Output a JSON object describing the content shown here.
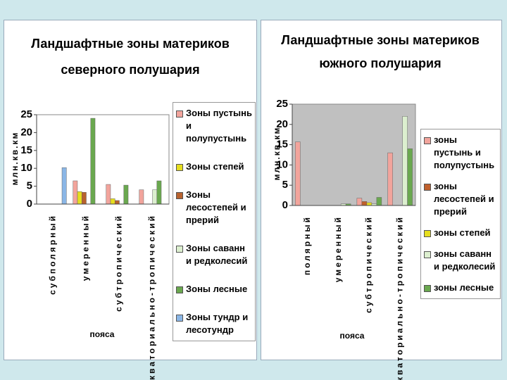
{
  "chart_data": [
    {
      "type": "bar",
      "title": [
        "Ландшафтные зоны материков",
        "северного полушария"
      ],
      "ylabel": "млн.кв.км",
      "xlabel": "пояса",
      "categories": [
        "субполярный",
        "умеренный",
        "субтропический",
        "экваториально-тропический"
      ],
      "series": [
        {
          "name": "Зоны пустынь и полупустынь",
          "color": "#f2a49c",
          "values": [
            0,
            6.5,
            5.5,
            4
          ]
        },
        {
          "name": "Зоны степей",
          "color": "#e6de1e",
          "values": [
            0,
            3.5,
            1.5,
            0
          ]
        },
        {
          "name": "Зоны лесостепей и прерий",
          "color": "#b8622e",
          "values": [
            0,
            3.3,
            1,
            0
          ]
        },
        {
          "name": "Зоны саванн и редколесий",
          "color": "#dcefcf",
          "values": [
            0,
            0,
            0,
            4
          ]
        },
        {
          "name": "Зоны лесные",
          "color": "#6aa84f",
          "values": [
            0,
            24,
            5.3,
            6.5
          ]
        },
        {
          "name": "Зоны тундр и лесотундр",
          "color": "#8ab6e6",
          "values": [
            10.2,
            0,
            0,
            0
          ]
        }
      ],
      "ylim": [
        0,
        25
      ],
      "yticks": [
        0,
        5,
        10,
        15,
        20,
        25
      ],
      "grid": false,
      "plot_background": "#ffffff"
    },
    {
      "type": "bar",
      "title": [
        "Ландшафтные зоны материков",
        "южного полушария"
      ],
      "ylabel": "млн.кв.км",
      "xlabel": "пояса",
      "categories": [
        "полярный",
        "умеренный",
        "субтропический",
        "экваториально-тропический"
      ],
      "series": [
        {
          "name": "зоны пустынь и полупустынь",
          "color": "#f2a49c",
          "values": [
            15.7,
            0,
            1.8,
            13
          ]
        },
        {
          "name": "зоны лесостепей и прерий",
          "color": "#c0602c",
          "values": [
            0,
            0,
            1,
            0
          ]
        },
        {
          "name": "зоны степей",
          "color": "#e6de1e",
          "values": [
            0,
            0,
            0.7,
            0
          ]
        },
        {
          "name": "зоны саванн и редколесий",
          "color": "#dcefcf",
          "values": [
            0,
            0.4,
            0.4,
            22
          ]
        },
        {
          "name": "зоны лесные",
          "color": "#6aa84f",
          "values": [
            0,
            0.4,
            2,
            14
          ]
        }
      ],
      "ylim": [
        0,
        25
      ],
      "yticks": [
        0,
        5,
        10,
        15,
        20,
        25
      ],
      "grid": false,
      "plot_background": "#c0c0c0"
    }
  ]
}
